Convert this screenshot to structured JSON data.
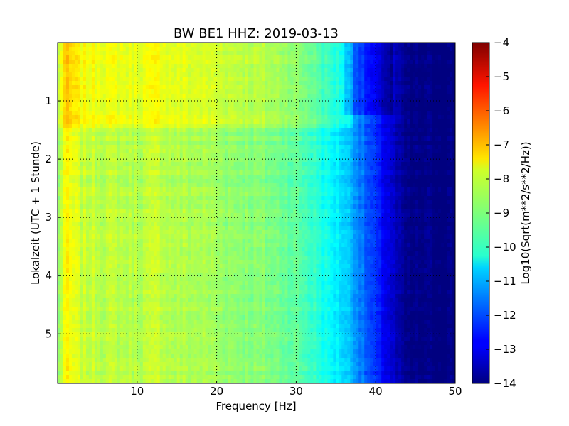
{
  "chart_data": {
    "type": "heatmap",
    "title": "BW BE1 HHZ: 2019-03-13",
    "xlabel": "Frequency [Hz]",
    "ylabel": "Lokalzeit (UTC + 1 Stunde)",
    "xlim": [
      0,
      50
    ],
    "ylim": [
      5.85,
      0.0
    ],
    "y_inverted": true,
    "x_ticks": [
      10,
      20,
      30,
      40,
      50
    ],
    "y_ticks": [
      1,
      2,
      3,
      4,
      5
    ],
    "grid": true,
    "grid_style": "dotted",
    "colormap": "jet",
    "colorbar": {
      "label": "Log10(Sqrt(m**2/s**2/Hz))",
      "range": [
        -14,
        -4
      ],
      "ticks": [
        -4,
        -5,
        -6,
        -7,
        -8,
        -9,
        -10,
        -11,
        -12,
        -13,
        -14
      ]
    },
    "frequency_profile": {
      "frequency_hz": [
        0,
        0.5,
        1,
        1.5,
        3,
        6,
        10,
        13,
        14,
        18,
        22,
        26,
        29,
        31,
        32.5,
        34,
        36,
        37.5,
        39,
        40.5,
        42,
        43,
        44,
        50
      ],
      "log10_amplitude": [
        -9.0,
        -8.4,
        -7.7,
        -7.9,
        -8.3,
        -8.4,
        -8.5,
        -8.3,
        -8.5,
        -8.6,
        -8.8,
        -9.0,
        -9.2,
        -9.5,
        -9.8,
        -10.2,
        -10.6,
        -11.2,
        -12.0,
        -12.6,
        -13.2,
        -13.7,
        -14.0,
        -14.0
      ]
    },
    "time_events": [
      {
        "time_h": 1.45,
        "delta": 0.5,
        "fmin": 0,
        "fmax": 37
      },
      {
        "time_h": 1.2,
        "delta": -0.6,
        "fmin": 36,
        "fmax": 42
      }
    ]
  }
}
